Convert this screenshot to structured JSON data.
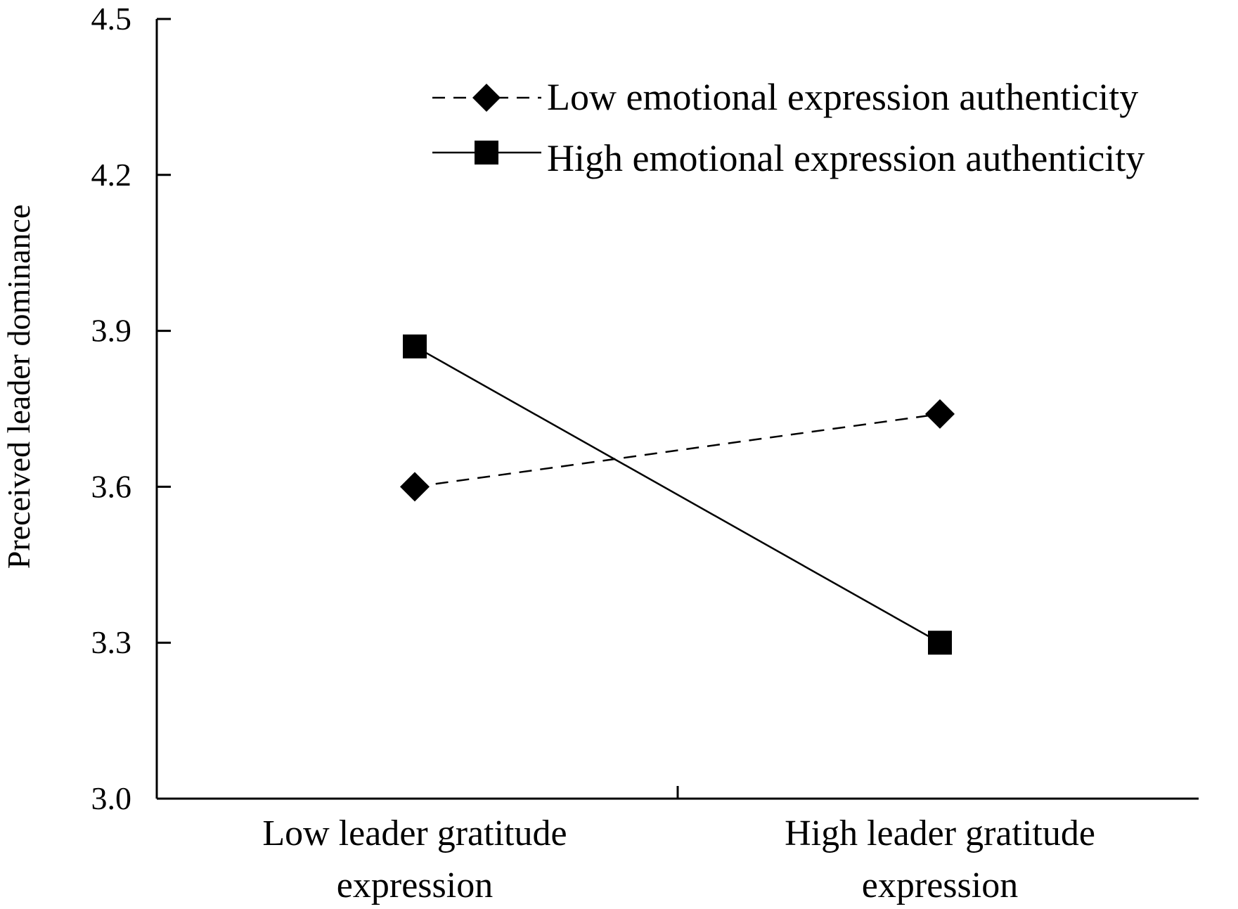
{
  "chart_data": {
    "type": "line",
    "title": "",
    "xlabel": "",
    "ylabel": "Preceived leader dominance",
    "ylim": [
      3.0,
      4.5
    ],
    "yticks": [
      "3.0",
      "3.3",
      "3.6",
      "3.9",
      "4.2",
      "4.5"
    ],
    "categories": [
      [
        "Low leader gratitude",
        "expression"
      ],
      [
        "High leader gratitude",
        "expression"
      ]
    ],
    "series": [
      {
        "name": "Low emotional expression authenticity",
        "values": [
          3.6,
          3.74
        ],
        "line_style": "dashed",
        "marker": "diamond",
        "color": "#000000"
      },
      {
        "name": "High emotional expression authenticity",
        "values": [
          3.87,
          3.3
        ],
        "line_style": "solid",
        "marker": "square",
        "color": "#000000"
      }
    ],
    "legend_position": "top-right",
    "grid": false
  }
}
